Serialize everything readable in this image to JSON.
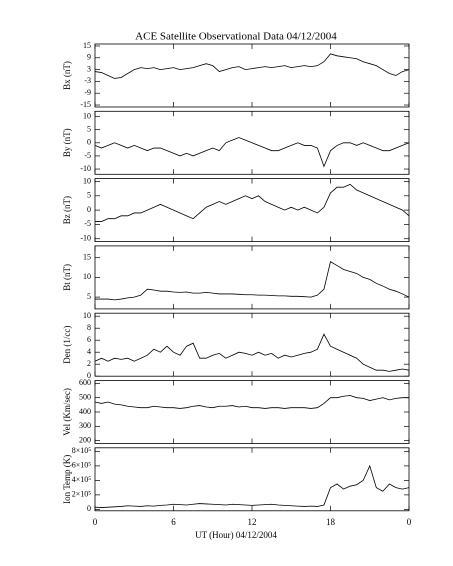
{
  "chart_data": {
    "type": "line",
    "title": "ACE Satellite Observational Data   04/12/2004",
    "xlabel": "UT (Hour)   04/12/2004",
    "xlim": [
      0,
      24
    ],
    "xticks": [
      0,
      6,
      12,
      18,
      {
        "value": 24,
        "label": "0"
      }
    ],
    "x": [
      0,
      0.5,
      1,
      1.5,
      2,
      2.5,
      3,
      3.5,
      4,
      4.5,
      5,
      5.5,
      6,
      6.5,
      7,
      7.5,
      8,
      8.5,
      9,
      9.5,
      10,
      10.5,
      11,
      11.5,
      12,
      12.5,
      13,
      13.5,
      14,
      14.5,
      15,
      15.5,
      16,
      16.5,
      17,
      17.5,
      18,
      18.5,
      19,
      19.5,
      20,
      20.5,
      21,
      21.5,
      22,
      22.5,
      23,
      23.5,
      24
    ],
    "color": "#000000",
    "panels": [
      {
        "ylabel": "Bx (nT)",
        "ylim": [
          -16,
          16
        ],
        "yticks": [
          15,
          9,
          3,
          -3,
          -9,
          -15
        ],
        "values": [
          2,
          1.5,
          0,
          -1.5,
          -1,
          1,
          3,
          4,
          3.5,
          4,
          3,
          3.5,
          4,
          3,
          3.5,
          4,
          5,
          6,
          5,
          2,
          3,
          4,
          4.5,
          3,
          3.5,
          4,
          4.5,
          4,
          4.5,
          5,
          4,
          4.5,
          5,
          4.5,
          5,
          7,
          11,
          10,
          9.5,
          9,
          8.5,
          7,
          6,
          5,
          3,
          1,
          0,
          2,
          3
        ]
      },
      {
        "ylabel": "By (nT)",
        "ylim": [
          -12,
          12
        ],
        "yticks": [
          10,
          5,
          0,
          -5,
          -10
        ],
        "values": [
          -1,
          -2,
          -1,
          0,
          -1,
          -2,
          -1,
          -2,
          -3,
          -2,
          -2,
          -3,
          -4,
          -5,
          -4,
          -5,
          -4,
          -3,
          -2,
          -3,
          0,
          1,
          2,
          1,
          0,
          -1,
          -2,
          -3,
          -3,
          -2,
          -1,
          0,
          -1,
          -1,
          -2,
          -9,
          -3,
          -1,
          0,
          0,
          -1,
          0,
          -1,
          -2,
          -3,
          -3,
          -2,
          -1,
          0
        ]
      },
      {
        "ylabel": "Bz (nT)",
        "ylim": [
          -11,
          11
        ],
        "yticks": [
          10,
          5,
          0,
          -5,
          -10
        ],
        "values": [
          -4,
          -4,
          -3,
          -3,
          -2,
          -2,
          -1,
          -1,
          0,
          1,
          2,
          1,
          0,
          -1,
          -2,
          -3,
          -1,
          1,
          2,
          3,
          2,
          3,
          4,
          5,
          4,
          5,
          3,
          2,
          1,
          0,
          1,
          0,
          1,
          0,
          -1,
          1,
          6,
          8,
          8,
          9,
          7,
          6,
          5,
          4,
          3,
          2,
          1,
          0,
          -2
        ]
      },
      {
        "ylabel": "Bt (nT)",
        "ylim": [
          2,
          18
        ],
        "yticks": [
          5,
          10,
          15
        ],
        "values": [
          4.5,
          4.5,
          4.5,
          4.3,
          4.5,
          4.8,
          5,
          5.5,
          7,
          6.8,
          6.5,
          6.5,
          6.3,
          6.2,
          6.3,
          6,
          6,
          6.2,
          6,
          5.8,
          5.8,
          5.8,
          5.7,
          5.6,
          5.6,
          5.5,
          5.5,
          5.4,
          5.3,
          5.3,
          5.2,
          5.2,
          5.1,
          5,
          5.5,
          7,
          14,
          13,
          12,
          11.5,
          11,
          10,
          9.5,
          8.5,
          7.8,
          7,
          6.5,
          5.8,
          5
        ]
      },
      {
        "ylabel": "Den (1/cc)",
        "ylim": [
          0,
          10.5
        ],
        "yticks": [
          0,
          2,
          4,
          6,
          8,
          10
        ],
        "values": [
          2.5,
          3,
          2.5,
          3,
          2.8,
          3,
          2.5,
          3,
          3.5,
          4.5,
          4,
          5,
          4,
          3.5,
          5,
          5.5,
          3,
          3,
          3.5,
          3.8,
          3,
          3.5,
          4,
          3.8,
          3.5,
          4,
          3.5,
          3.8,
          3,
          3.5,
          3.2,
          3.5,
          3.8,
          4,
          4.5,
          7,
          5,
          4.5,
          4,
          3.5,
          3,
          2,
          1.5,
          1,
          1,
          0.8,
          1,
          1.2,
          1
        ]
      },
      {
        "ylabel": "Vel (Km/sec)",
        "ylim": [
          180,
          620
        ],
        "yticks": [
          200,
          300,
          400,
          500,
          600
        ],
        "values": [
          470,
          460,
          470,
          455,
          450,
          440,
          435,
          430,
          430,
          440,
          435,
          430,
          430,
          425,
          430,
          440,
          445,
          435,
          430,
          440,
          440,
          445,
          435,
          440,
          430,
          430,
          425,
          430,
          430,
          425,
          430,
          430,
          430,
          425,
          430,
          460,
          500,
          500,
          510,
          515,
          500,
          495,
          480,
          490,
          500,
          485,
          495,
          500,
          500
        ]
      },
      {
        "ylabel": "Ion Temp (K)",
        "ylim": [
          -20000,
          850000
        ],
        "yticks": [
          0,
          {
            "value": 200000,
            "label": "2×10⁵"
          },
          {
            "value": 400000,
            "label": "4×10⁵"
          },
          {
            "value": 600000,
            "label": "6×10⁵"
          },
          {
            "value": 800000,
            "label": "8×10⁵"
          }
        ],
        "values": [
          30000,
          25000,
          30000,
          35000,
          40000,
          50000,
          45000,
          40000,
          50000,
          45000,
          55000,
          60000,
          70000,
          65000,
          60000,
          70000,
          80000,
          75000,
          70000,
          65000,
          60000,
          70000,
          65000,
          60000,
          55000,
          60000,
          65000,
          70000,
          60000,
          55000,
          50000,
          45000,
          40000,
          45000,
          40000,
          60000,
          300000,
          350000,
          280000,
          320000,
          340000,
          400000,
          600000,
          300000,
          250000,
          350000,
          300000,
          280000,
          300000
        ]
      }
    ]
  }
}
